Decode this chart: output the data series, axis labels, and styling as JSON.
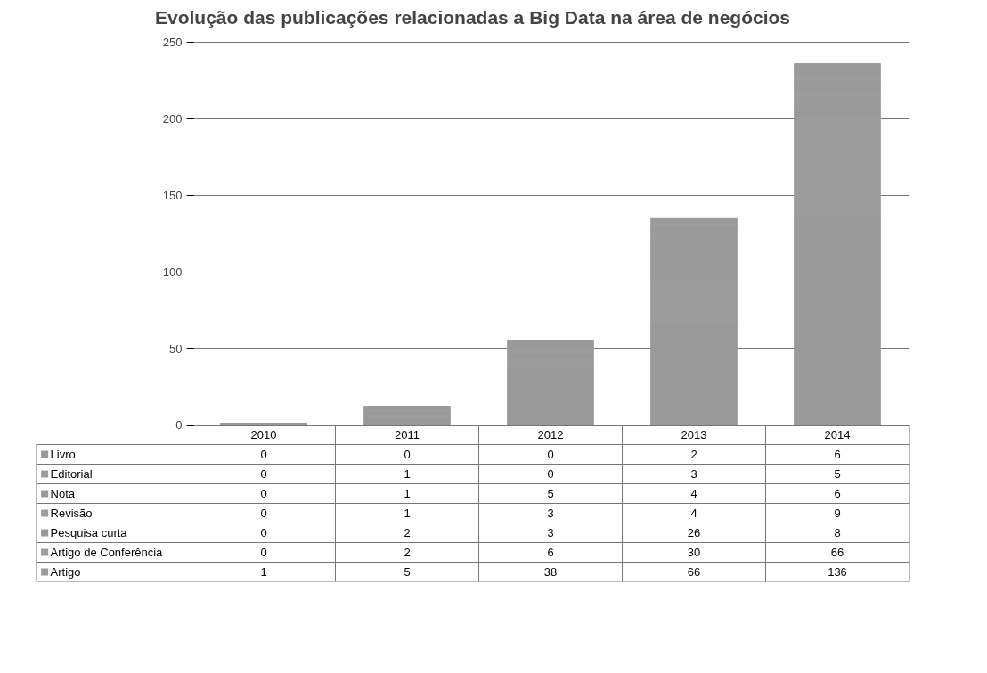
{
  "chart_data": {
    "type": "bar",
    "title": "Evolução das publicações relacionadas a Big Data na área de negócios",
    "categories": [
      "2010",
      "2011",
      "2012",
      "2013",
      "2014"
    ],
    "stacked": true,
    "legend": "bottom left",
    "data_labels": true,
    "grid": "y",
    "ylim": [
      0,
      250
    ],
    "yticks": [
      0,
      50,
      100,
      150,
      200,
      250
    ],
    "series": [
      {
        "name": "Artigo",
        "color": "#999999",
        "values": [
          1,
          5,
          38,
          66,
          136
        ]
      },
      {
        "name": "Artigo de Conferência",
        "color": "#9c9c9c",
        "values": [
          0,
          2,
          6,
          30,
          66
        ]
      },
      {
        "name": "Pesquisa curta",
        "color": "#999999",
        "values": [
          0,
          2,
          3,
          26,
          8
        ]
      },
      {
        "name": "Revisão",
        "color": "#9c9c9c",
        "values": [
          0,
          1,
          3,
          4,
          9
        ]
      },
      {
        "name": "Nota",
        "color": "#999999",
        "values": [
          0,
          1,
          5,
          4,
          6
        ]
      },
      {
        "name": "Editorial",
        "color": "#9c9c9c",
        "values": [
          0,
          1,
          0,
          3,
          5
        ]
      },
      {
        "name": "Livro",
        "color": "#999999",
        "values": [
          0,
          0,
          0,
          2,
          6
        ]
      }
    ]
  }
}
